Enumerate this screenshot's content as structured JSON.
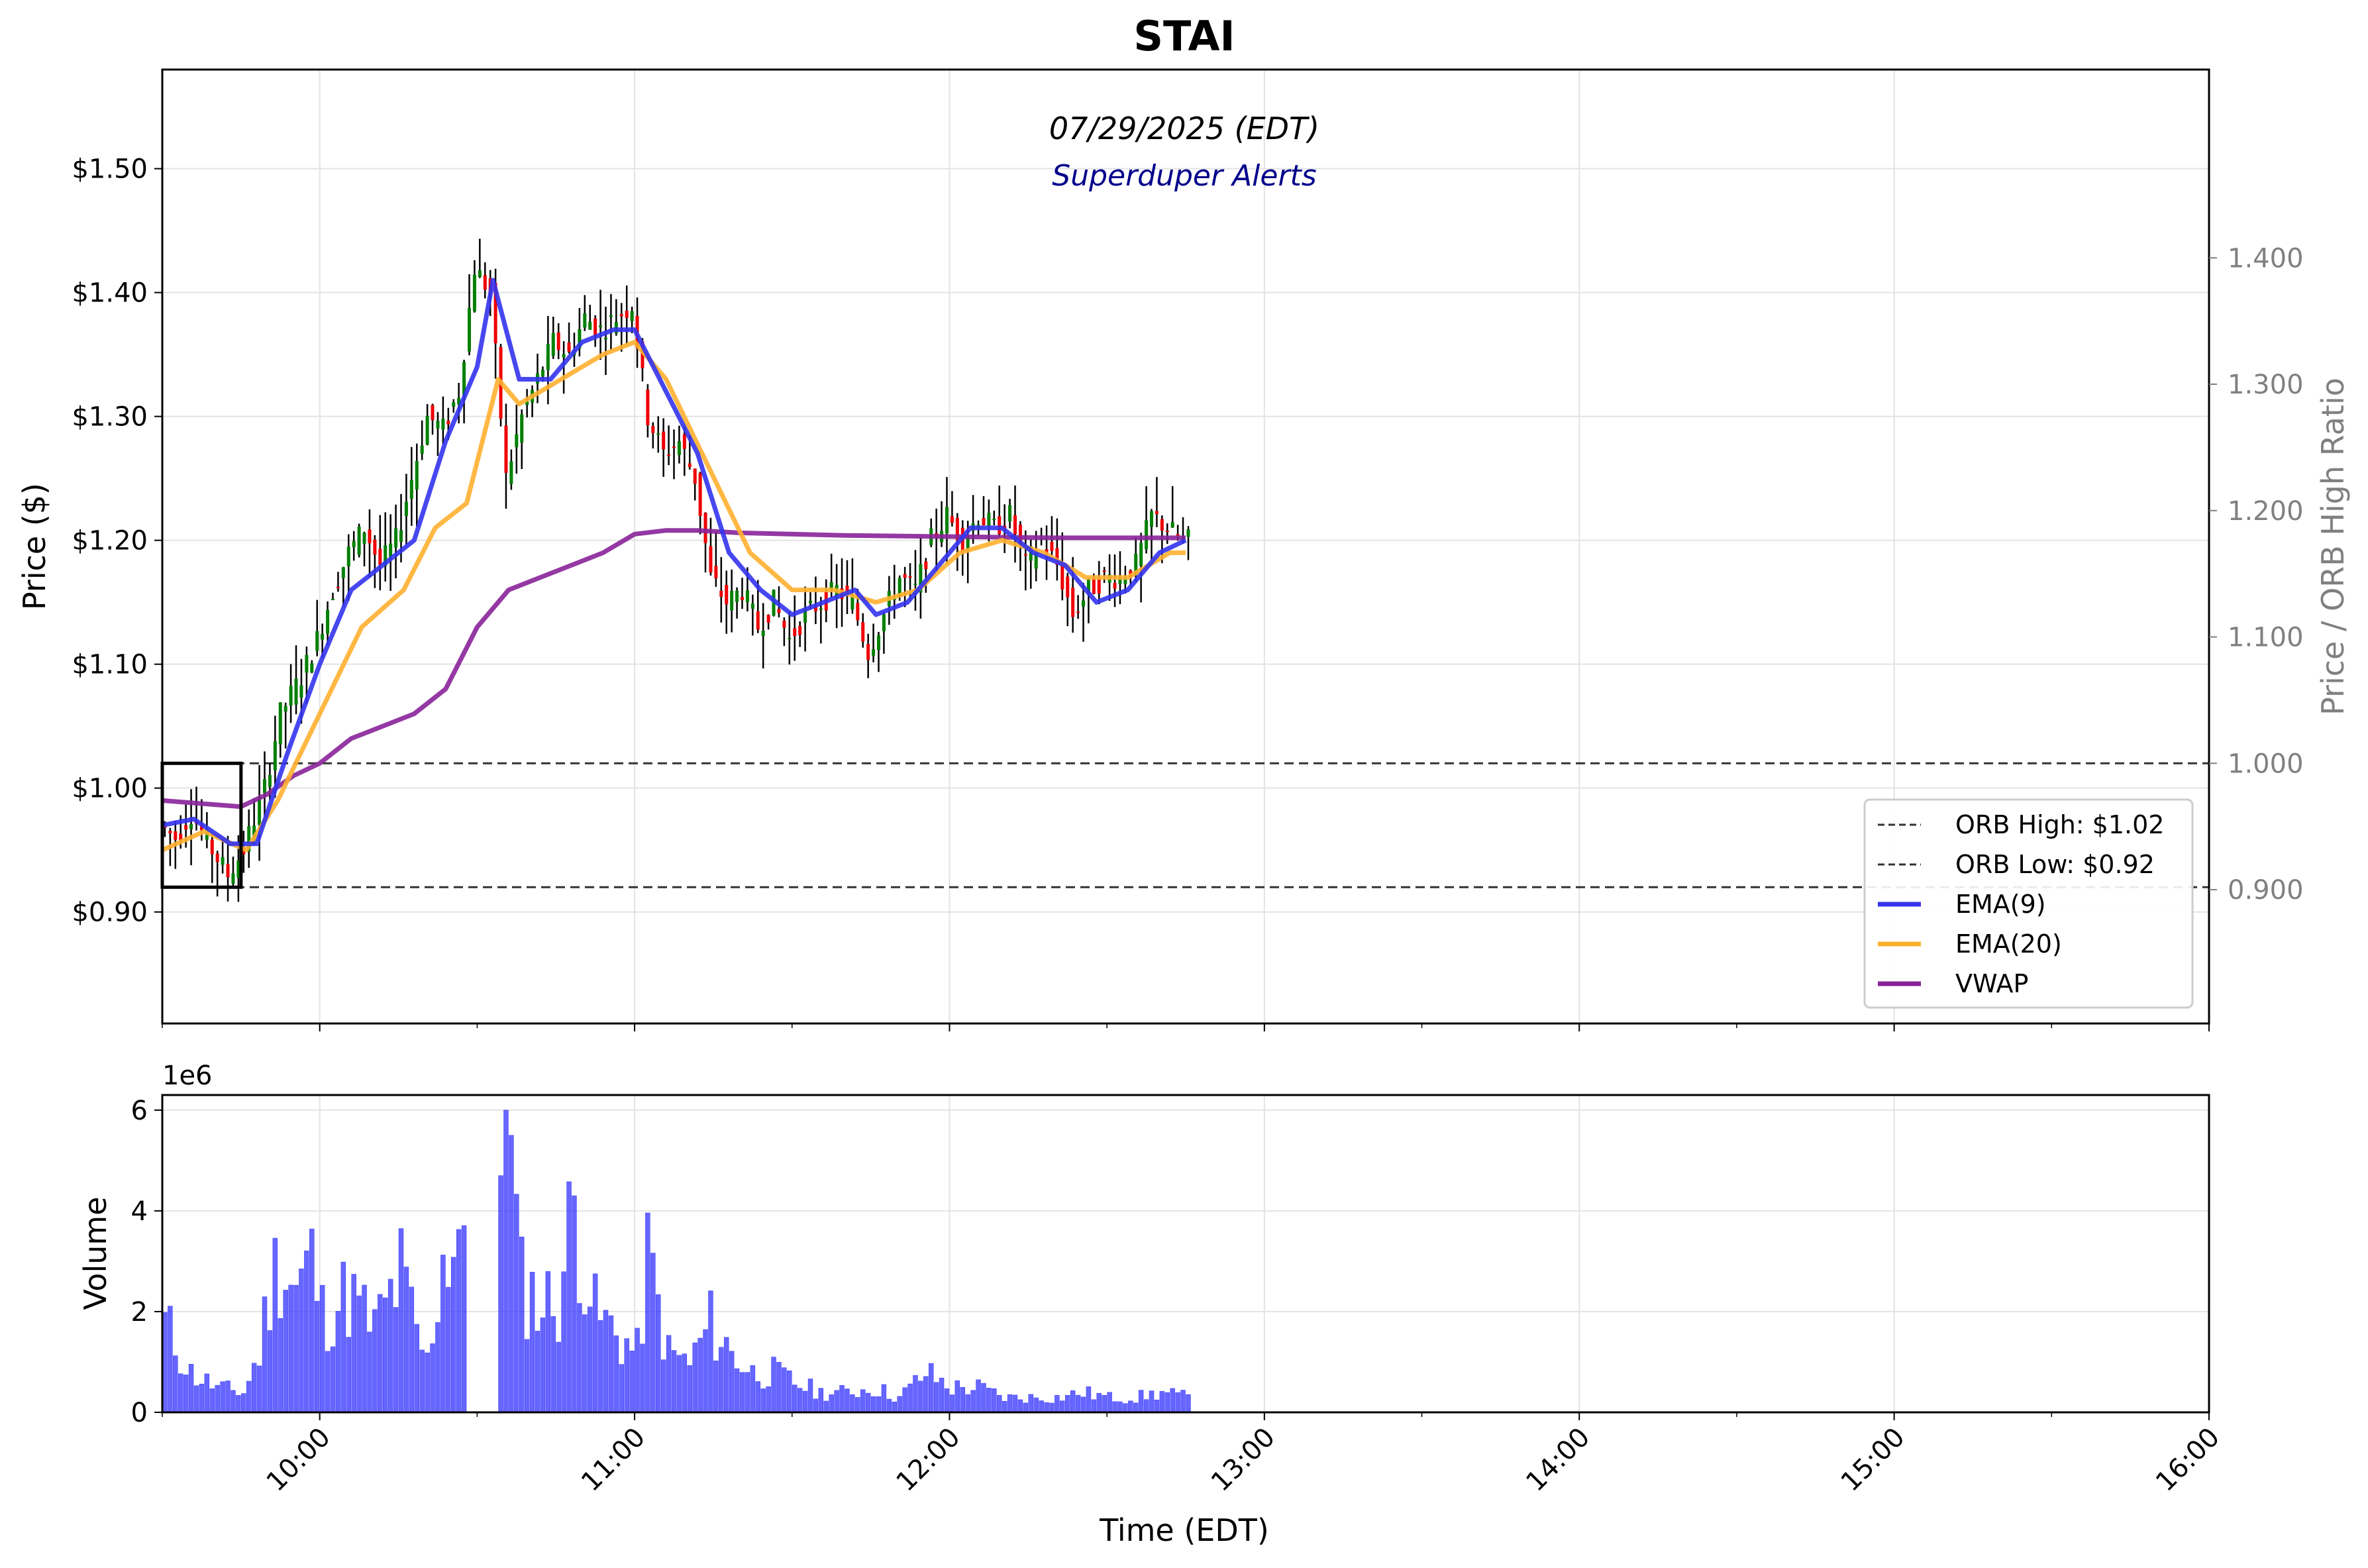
{
  "title": "STAI",
  "chart_data": [
    {
      "type": "candlestick",
      "subtitle": "07/29/2025 (EDT)",
      "watermark": "Superduper Alerts",
      "ylabel": "Price ($)",
      "y2label": "Price / ORB High Ratio",
      "ylim": [
        0.81,
        1.58
      ],
      "y_ticks": [
        "$0.90",
        "$1.00",
        "$1.10",
        "$1.20",
        "$1.30",
        "$1.40",
        "$1.50"
      ],
      "y2_ticks": [
        "0.900",
        "1.000",
        "1.100",
        "1.200",
        "1.300",
        "1.400"
      ],
      "orb_high": 1.02,
      "orb_low": 0.92,
      "orb_window": [
        "09:30",
        "09:45"
      ],
      "legend_position": "lower-right",
      "legend": [
        {
          "label": "ORB High: $1.02",
          "color": "#333333",
          "style": "dashed"
        },
        {
          "label": "ORB Low: $0.92",
          "color": "#333333",
          "style": "dashed"
        },
        {
          "label": "EMA(9)",
          "color": "#3333ee",
          "style": "solid"
        },
        {
          "label": "EMA(20)",
          "color": "#ffb030",
          "style": "solid"
        },
        {
          "label": "VWAP",
          "color": "#882299",
          "style": "solid"
        }
      ],
      "candle_colors": {
        "up": "#008000",
        "down": "#ee0000",
        "wick": "#000000"
      },
      "price_path": [
        [
          "09:30",
          0.97
        ],
        [
          "09:33",
          0.96
        ],
        [
          "09:36",
          0.98
        ],
        [
          "09:40",
          0.95
        ],
        [
          "09:43",
          0.93
        ],
        [
          "09:46",
          0.95
        ],
        [
          "09:50",
          1.0
        ],
        [
          "09:53",
          1.06
        ],
        [
          "09:57",
          1.09
        ],
        [
          "10:00",
          1.12
        ],
        [
          "10:03",
          1.16
        ],
        [
          "10:06",
          1.19
        ],
        [
          "10:09",
          1.21
        ],
        [
          "10:12",
          1.18
        ],
        [
          "10:15",
          1.2
        ],
        [
          "10:18",
          1.25
        ],
        [
          "10:21",
          1.3
        ],
        [
          "10:24",
          1.29
        ],
        [
          "10:27",
          1.32
        ],
        [
          "10:30",
          1.42
        ],
        [
          "10:33",
          1.4
        ],
        [
          "10:36",
          1.25
        ],
        [
          "10:39",
          1.3
        ],
        [
          "10:42",
          1.33
        ],
        [
          "10:45",
          1.36
        ],
        [
          "10:48",
          1.35
        ],
        [
          "10:51",
          1.38
        ],
        [
          "10:54",
          1.37
        ],
        [
          "10:57",
          1.38
        ],
        [
          "11:00",
          1.39
        ],
        [
          "11:03",
          1.3
        ],
        [
          "11:06",
          1.27
        ],
        [
          "11:09",
          1.28
        ],
        [
          "11:12",
          1.25
        ],
        [
          "11:15",
          1.17
        ],
        [
          "11:18",
          1.15
        ],
        [
          "11:21",
          1.16
        ],
        [
          "11:24",
          1.13
        ],
        [
          "11:27",
          1.15
        ],
        [
          "11:30",
          1.12
        ],
        [
          "11:33",
          1.14
        ],
        [
          "11:36",
          1.15
        ],
        [
          "11:39",
          1.16
        ],
        [
          "11:42",
          1.15
        ],
        [
          "11:45",
          1.11
        ],
        [
          "11:48",
          1.14
        ],
        [
          "11:51",
          1.17
        ],
        [
          "11:54",
          1.16
        ],
        [
          "11:57",
          1.2
        ],
        [
          "12:00",
          1.22
        ],
        [
          "12:03",
          1.2
        ],
        [
          "12:06",
          1.22
        ],
        [
          "12:09",
          1.21
        ],
        [
          "12:12",
          1.22
        ],
        [
          "12:15",
          1.18
        ],
        [
          "12:18",
          1.2
        ],
        [
          "12:21",
          1.18
        ],
        [
          "12:24",
          1.14
        ],
        [
          "12:27",
          1.16
        ],
        [
          "12:30",
          1.17
        ],
        [
          "12:33",
          1.17
        ],
        [
          "12:36",
          1.18
        ],
        [
          "12:39",
          1.22
        ],
        [
          "12:42",
          1.21
        ],
        [
          "12:45",
          1.2
        ]
      ],
      "ema9": [
        [
          "09:30",
          0.97
        ],
        [
          "09:36",
          0.975
        ],
        [
          "09:43",
          0.955
        ],
        [
          "09:48",
          0.955
        ],
        [
          "09:54",
          1.03
        ],
        [
          "10:00",
          1.1
        ],
        [
          "10:06",
          1.16
        ],
        [
          "10:12",
          1.18
        ],
        [
          "10:18",
          1.2
        ],
        [
          "10:24",
          1.28
        ],
        [
          "10:30",
          1.34
        ],
        [
          "10:33",
          1.41
        ],
        [
          "10:38",
          1.33
        ],
        [
          "10:44",
          1.33
        ],
        [
          "10:50",
          1.36
        ],
        [
          "10:56",
          1.37
        ],
        [
          "11:00",
          1.37
        ],
        [
          "11:06",
          1.32
        ],
        [
          "11:12",
          1.27
        ],
        [
          "11:18",
          1.19
        ],
        [
          "11:24",
          1.16
        ],
        [
          "11:30",
          1.14
        ],
        [
          "11:36",
          1.15
        ],
        [
          "11:42",
          1.16
        ],
        [
          "11:46",
          1.14
        ],
        [
          "11:52",
          1.15
        ],
        [
          "11:58",
          1.18
        ],
        [
          "12:04",
          1.21
        ],
        [
          "12:10",
          1.21
        ],
        [
          "12:16",
          1.19
        ],
        [
          "12:22",
          1.18
        ],
        [
          "12:28",
          1.15
        ],
        [
          "12:34",
          1.16
        ],
        [
          "12:40",
          1.19
        ],
        [
          "12:45",
          1.2
        ]
      ],
      "ema20": [
        [
          "09:30",
          0.95
        ],
        [
          "09:38",
          0.965
        ],
        [
          "09:46",
          0.95
        ],
        [
          "09:52",
          0.99
        ],
        [
          "10:00",
          1.06
        ],
        [
          "10:08",
          1.13
        ],
        [
          "10:16",
          1.16
        ],
        [
          "10:22",
          1.21
        ],
        [
          "10:28",
          1.23
        ],
        [
          "10:34",
          1.33
        ],
        [
          "10:38",
          1.31
        ],
        [
          "10:46",
          1.33
        ],
        [
          "10:54",
          1.35
        ],
        [
          "11:00",
          1.36
        ],
        [
          "11:06",
          1.33
        ],
        [
          "11:14",
          1.26
        ],
        [
          "11:22",
          1.19
        ],
        [
          "11:30",
          1.16
        ],
        [
          "11:38",
          1.16
        ],
        [
          "11:46",
          1.15
        ],
        [
          "11:54",
          1.16
        ],
        [
          "12:02",
          1.19
        ],
        [
          "12:10",
          1.2
        ],
        [
          "12:18",
          1.19
        ],
        [
          "12:26",
          1.17
        ],
        [
          "12:34",
          1.17
        ],
        [
          "12:42",
          1.19
        ],
        [
          "12:45",
          1.19
        ]
      ],
      "vwap": [
        [
          "09:30",
          0.99
        ],
        [
          "09:45",
          0.985
        ],
        [
          "09:50",
          0.995
        ],
        [
          "09:55",
          1.01
        ],
        [
          "10:00",
          1.02
        ],
        [
          "10:06",
          1.04
        ],
        [
          "10:12",
          1.05
        ],
        [
          "10:18",
          1.06
        ],
        [
          "10:24",
          1.08
        ],
        [
          "10:30",
          1.13
        ],
        [
          "10:36",
          1.16
        ],
        [
          "10:42",
          1.17
        ],
        [
          "10:48",
          1.18
        ],
        [
          "10:54",
          1.19
        ],
        [
          "11:00",
          1.205
        ],
        [
          "11:06",
          1.208
        ],
        [
          "11:12",
          1.208
        ],
        [
          "11:20",
          1.206
        ],
        [
          "11:40",
          1.204
        ],
        [
          "12:00",
          1.203
        ],
        [
          "12:20",
          1.202
        ],
        [
          "12:45",
          1.202
        ]
      ]
    },
    {
      "type": "bar",
      "ylabel": "Volume",
      "xlabel": "Time (EDT)",
      "y_multiplier": "1e6",
      "ylim": [
        0,
        6.3
      ],
      "y_ticks": [
        "0",
        "2",
        "4",
        "6"
      ],
      "x_ticks": [
        "10:00",
        "11:00",
        "12:00",
        "13:00",
        "14:00",
        "15:00",
        "16:00"
      ],
      "x_range": [
        "09:30",
        "16:00"
      ],
      "bar_color": "#3333ff",
      "volume_millions": [
        [
          "09:30",
          1.8
        ],
        [
          "09:35",
          0.8
        ],
        [
          "09:40",
          0.5
        ],
        [
          "09:45",
          0.4
        ],
        [
          "09:48",
          1.2
        ],
        [
          "09:50",
          2.5
        ],
        [
          "09:52",
          3.2
        ],
        [
          "09:55",
          2.5
        ],
        [
          "09:58",
          3.1
        ],
        [
          "10:00",
          2.0
        ],
        [
          "10:05",
          2.4
        ],
        [
          "10:10",
          1.7
        ],
        [
          "10:15",
          2.8
        ],
        [
          "10:18",
          1.6
        ],
        [
          "10:20",
          1.0
        ],
        [
          "10:23",
          3.2
        ],
        [
          "10:26",
          3.7
        ],
        [
          "10:28",
          2.0
        ],
        [
          "10:30",
          0.0
        ],
        [
          "10:34",
          4.7
        ],
        [
          "10:35",
          6.0
        ],
        [
          "10:38",
          2.6
        ],
        [
          "10:42",
          2.2
        ],
        [
          "10:45",
          2.3
        ],
        [
          "10:48",
          4.3
        ],
        [
          "10:52",
          2.0
        ],
        [
          "10:56",
          1.6
        ],
        [
          "11:00",
          1.2
        ],
        [
          "11:02",
          3.1
        ],
        [
          "11:06",
          1.2
        ],
        [
          "11:10",
          1.0
        ],
        [
          "11:14",
          1.8
        ],
        [
          "11:18",
          1.2
        ],
        [
          "11:22",
          0.8
        ],
        [
          "11:26",
          0.8
        ],
        [
          "11:30",
          0.6
        ],
        [
          "11:35",
          0.4
        ],
        [
          "11:40",
          0.4
        ],
        [
          "11:45",
          0.5
        ],
        [
          "11:50",
          0.3
        ],
        [
          "11:55",
          0.8
        ],
        [
          "12:00",
          0.5
        ],
        [
          "12:05",
          0.5
        ],
        [
          "12:10",
          0.3
        ],
        [
          "12:15",
          0.3
        ],
        [
          "12:20",
          0.3
        ],
        [
          "12:25",
          0.4
        ],
        [
          "12:30",
          0.3
        ],
        [
          "12:35",
          0.3
        ],
        [
          "12:40",
          0.4
        ],
        [
          "12:45",
          0.3
        ]
      ]
    }
  ]
}
